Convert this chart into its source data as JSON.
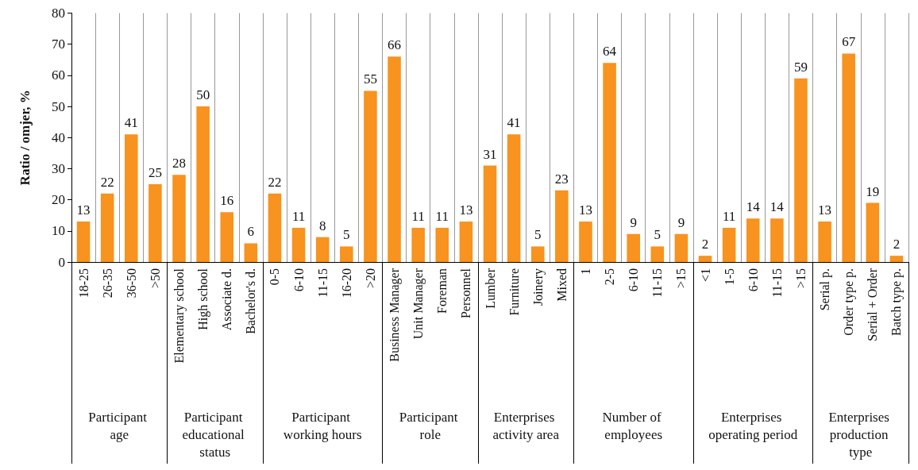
{
  "chart_data": {
    "type": "bar",
    "ylabel": "Ratio / omjer, %",
    "categories": [
      "18-25",
      "26-35",
      "36-50",
      ">50",
      "Elementary school",
      "High school",
      "Associate d.",
      "Bachelor's d.",
      "0-5",
      "6-10",
      "11-15",
      "16-20",
      ">20",
      "Business Manager",
      "Unit Manager",
      "Foreman",
      "Personnel",
      "Lumber",
      "Furniture",
      "Joinery",
      "Mixed",
      "1",
      "2-5",
      "6-10",
      "11-15",
      ">15",
      "<1",
      "1-5",
      "6-10",
      "11-15",
      ">15",
      "Serial p.",
      "Order type p.",
      "Serial + Order",
      "Batch type p."
    ],
    "series": [
      {
        "color": "#f7931e",
        "values": [
          13,
          22,
          41,
          25,
          null,
          null,
          null,
          null,
          null,
          null,
          null,
          null,
          null,
          null,
          null,
          null,
          null,
          null,
          null,
          null,
          null,
          null,
          null,
          null,
          null,
          null,
          null,
          null,
          null,
          null,
          null,
          null,
          null,
          null,
          null
        ]
      },
      {
        "color": "#f7931e",
        "values": [
          null,
          null,
          null,
          null,
          28,
          50,
          16,
          6,
          null,
          null,
          null,
          null,
          null,
          null,
          null,
          null,
          null,
          null,
          null,
          null,
          null,
          null,
          null,
          null,
          null,
          null,
          null,
          null,
          null,
          null,
          null,
          null,
          null,
          null,
          null
        ]
      },
      {
        "color": "#f7931e",
        "values": [
          null,
          null,
          null,
          null,
          null,
          null,
          null,
          null,
          22,
          11,
          8,
          5,
          55,
          null,
          null,
          null,
          null,
          null,
          null,
          null,
          null,
          null,
          null,
          null,
          null,
          null,
          null,
          null,
          null,
          null,
          null,
          null,
          null,
          null,
          null
        ]
      },
      {
        "color": "#f7931e",
        "values": [
          null,
          null,
          null,
          null,
          null,
          null,
          null,
          null,
          null,
          null,
          null,
          null,
          null,
          66,
          11,
          11,
          13,
          null,
          null,
          null,
          null,
          null,
          null,
          null,
          null,
          null,
          null,
          null,
          null,
          null,
          null,
          null,
          null,
          null,
          null
        ]
      },
      {
        "color": "#f7931e",
        "values": [
          null,
          null,
          null,
          null,
          null,
          null,
          null,
          null,
          null,
          null,
          null,
          null,
          null,
          null,
          null,
          null,
          null,
          31,
          41,
          5,
          23,
          null,
          null,
          null,
          null,
          null,
          null,
          null,
          null,
          null,
          null,
          null,
          null,
          null,
          null
        ]
      },
      {
        "color": "#f7931e",
        "values": [
          null,
          null,
          null,
          null,
          null,
          null,
          null,
          null,
          null,
          null,
          null,
          null,
          null,
          null,
          null,
          null,
          null,
          null,
          null,
          null,
          null,
          13,
          64,
          9,
          5,
          9,
          null,
          null,
          null,
          null,
          null,
          null,
          null,
          null,
          null
        ]
      },
      {
        "color": "#f7931e",
        "values": [
          null,
          null,
          null,
          null,
          null,
          null,
          null,
          null,
          null,
          null,
          null,
          null,
          null,
          null,
          null,
          null,
          null,
          null,
          null,
          null,
          null,
          null,
          null,
          null,
          null,
          null,
          2,
          11,
          14,
          14,
          59,
          null,
          null,
          null,
          null
        ]
      },
      {
        "color": "#f7931e",
        "values": [
          null,
          null,
          null,
          null,
          null,
          null,
          null,
          null,
          null,
          null,
          null,
          null,
          null,
          null,
          null,
          null,
          null,
          null,
          null,
          null,
          null,
          null,
          null,
          null,
          null,
          null,
          null,
          null,
          null,
          null,
          null,
          13,
          67,
          19,
          2
        ]
      }
    ],
    "annotations": [
      "Participant age",
      "Participant educational status",
      "Participant working hours",
      "Participant role",
      "Enterprises activity area",
      "Number of employees",
      "Enterprises operating period",
      "Enterprises production type"
    ],
    "ylim": [
      0,
      80
    ],
    "yticks": [
      0,
      10,
      20,
      30,
      40,
      50,
      60,
      70,
      80
    ],
    "grid": "x",
    "data_labels": true
  }
}
